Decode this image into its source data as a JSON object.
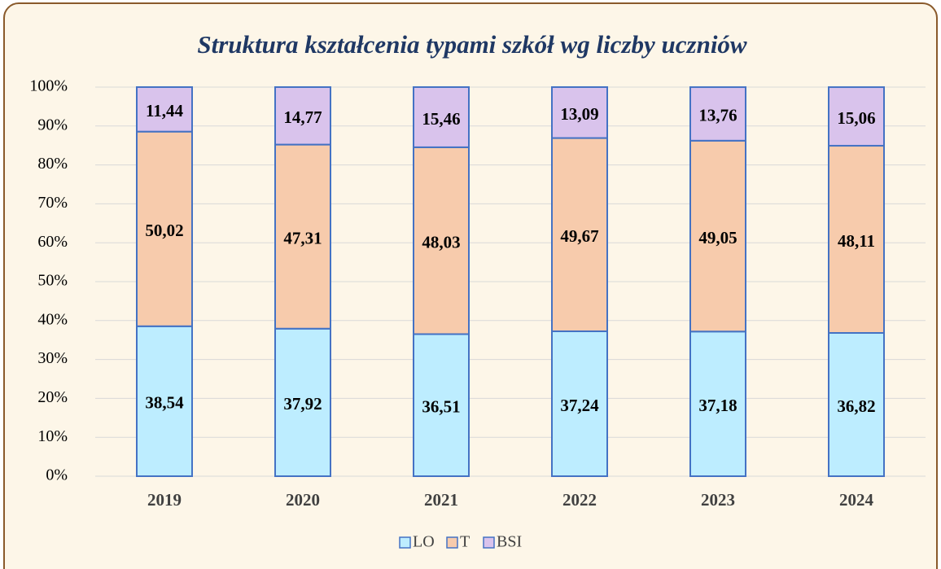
{
  "chart_data": {
    "type": "stacked_bar",
    "title": "Struktura  kształcenia typami szkół wg liczby uczniów",
    "categories": [
      "2019",
      "2020",
      "2021",
      "2022",
      "2023",
      "2024"
    ],
    "series": [
      {
        "name": "LO",
        "color": "#bdedff",
        "values": [
          38.54,
          37.92,
          36.51,
          37.24,
          37.18,
          36.82
        ],
        "value_labels": [
          "38,54",
          "37,92",
          "36,51",
          "37,24",
          "37,18",
          "36,82"
        ]
      },
      {
        "name": "T",
        "color": "#f7cbac",
        "values": [
          50.02,
          47.31,
          48.03,
          49.67,
          49.05,
          48.11
        ],
        "value_labels": [
          "50,02",
          "47,31",
          "48,03",
          "49,67",
          "49,05",
          "48,11"
        ]
      },
      {
        "name": "BSI",
        "color": "#d9c3ec",
        "values": [
          11.44,
          14.77,
          15.46,
          13.09,
          13.76,
          15.06
        ],
        "value_labels": [
          "11,44",
          "14,77",
          "15,46",
          "13,09",
          "13,76",
          "15,06"
        ]
      }
    ],
    "ylim": [
      0,
      100
    ],
    "yticks": [
      {
        "value": 0,
        "label": "0%"
      },
      {
        "value": 10,
        "label": "10%"
      },
      {
        "value": 20,
        "label": "20%"
      },
      {
        "value": 30,
        "label": "30%"
      },
      {
        "value": 40,
        "label": "40%"
      },
      {
        "value": 50,
        "label": "50%"
      },
      {
        "value": 60,
        "label": "60%"
      },
      {
        "value": 70,
        "label": "70%"
      },
      {
        "value": 80,
        "label": "80%"
      },
      {
        "value": 90,
        "label": "90%"
      },
      {
        "value": 100,
        "label": "100%"
      }
    ],
    "grid": true,
    "legend": "bottom"
  }
}
